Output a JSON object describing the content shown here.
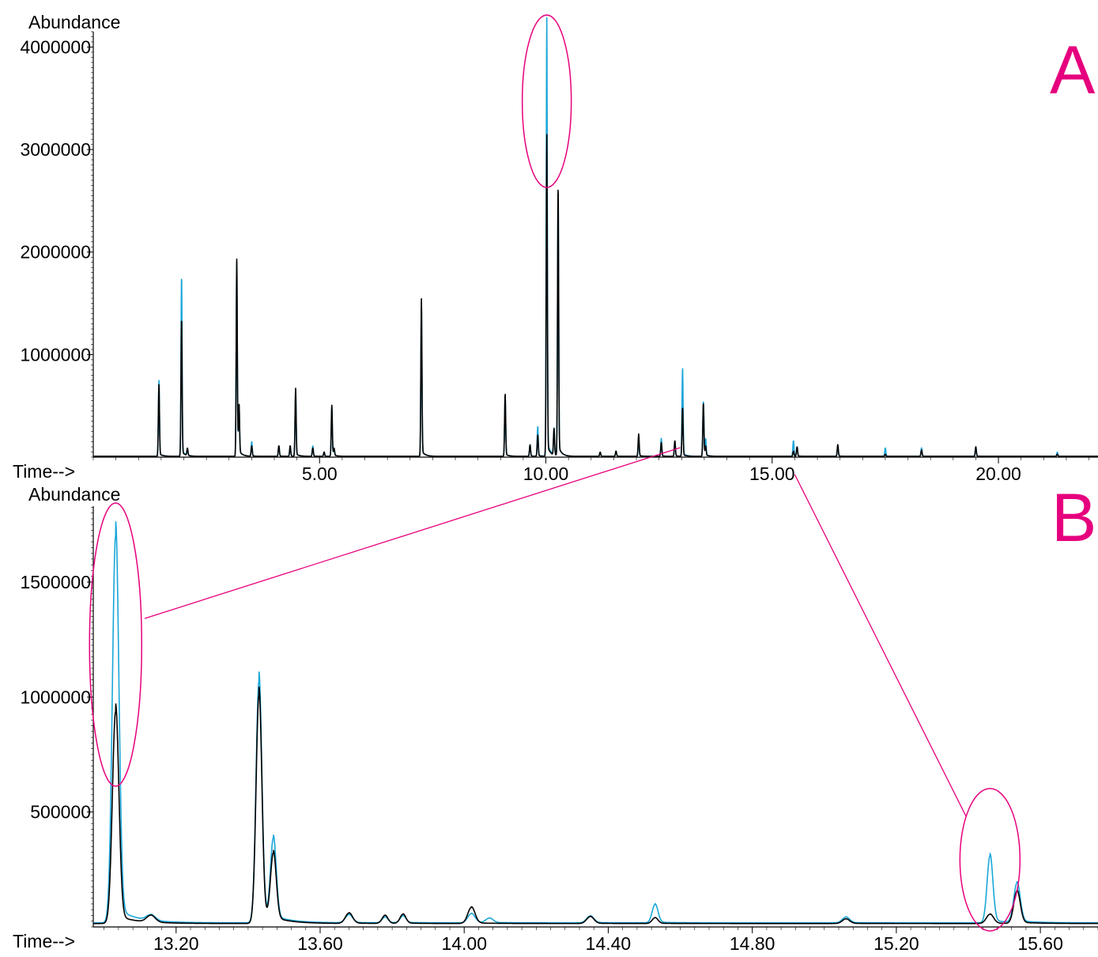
{
  "colors": {
    "series_cyan": "#1ba6d9",
    "series_black": "#000000",
    "annotation": "#e6007e",
    "axis": "#000000"
  },
  "chart_data": [
    {
      "panel": "A",
      "type": "line",
      "title": "",
      "ylabel": "Abundance",
      "xlabel": "Time-->",
      "xlim": [
        0.0,
        22.2
      ],
      "ylim": [
        0,
        4150000
      ],
      "x_ticks": [
        5.0,
        10.0,
        15.0,
        20.0
      ],
      "x_tick_labels": [
        "5.00",
        "10.00",
        "15.00",
        "20.00"
      ],
      "y_ticks": [
        1000000,
        2000000,
        3000000,
        4000000
      ],
      "y_tick_labels": [
        "1000000",
        "2000000",
        "3000000",
        "4000000"
      ],
      "grid": false,
      "series": [
        {
          "color": "cyan",
          "baseline": 8000,
          "peaks": [
            [
              1.45,
              720000
            ],
            [
              1.95,
              1730000
            ],
            [
              2.08,
              60000
            ],
            [
              3.17,
              1820000
            ],
            [
              3.22,
              460000
            ],
            [
              3.5,
              140000
            ],
            [
              4.1,
              100000
            ],
            [
              4.35,
              90000
            ],
            [
              4.47,
              620000
            ],
            [
              4.85,
              100000
            ],
            [
              5.1,
              40000
            ],
            [
              5.27,
              460000
            ],
            [
              5.32,
              60000
            ],
            [
              7.25,
              1440000
            ],
            [
              9.1,
              580000
            ],
            [
              9.65,
              110000
            ],
            [
              9.82,
              280000
            ],
            [
              10.02,
              4130000
            ],
            [
              10.18,
              250000
            ],
            [
              10.27,
              2560000
            ],
            [
              11.2,
              40000
            ],
            [
              11.55,
              50000
            ],
            [
              12.05,
              160000
            ],
            [
              12.55,
              170000
            ],
            [
              12.85,
              140000
            ],
            [
              13.02,
              840000
            ],
            [
              13.48,
              530000
            ],
            [
              13.53,
              160000
            ],
            [
              15.47,
              150000
            ],
            [
              15.55,
              90000
            ],
            [
              16.45,
              100000
            ],
            [
              17.5,
              80000
            ],
            [
              18.3,
              80000
            ],
            [
              19.5,
              80000
            ],
            [
              21.3,
              40000
            ]
          ]
        },
        {
          "color": "black",
          "baseline": 8000,
          "peaks": [
            [
              1.45,
              680000
            ],
            [
              1.95,
              1320000
            ],
            [
              2.08,
              70000
            ],
            [
              3.17,
              1850000
            ],
            [
              3.22,
              470000
            ],
            [
              3.5,
              100000
            ],
            [
              4.1,
              100000
            ],
            [
              4.35,
              100000
            ],
            [
              4.47,
              640000
            ],
            [
              4.85,
              80000
            ],
            [
              5.1,
              40000
            ],
            [
              5.27,
              480000
            ],
            [
              5.32,
              70000
            ],
            [
              7.25,
              1480000
            ],
            [
              9.1,
              590000
            ],
            [
              9.65,
              110000
            ],
            [
              9.82,
              200000
            ],
            [
              10.02,
              3030000
            ],
            [
              10.18,
              250000
            ],
            [
              10.27,
              2590000
            ],
            [
              11.2,
              40000
            ],
            [
              11.55,
              50000
            ],
            [
              12.05,
              210000
            ],
            [
              12.55,
              130000
            ],
            [
              12.85,
              150000
            ],
            [
              13.02,
              460000
            ],
            [
              13.48,
              510000
            ],
            [
              13.53,
              90000
            ],
            [
              15.47,
              50000
            ],
            [
              15.55,
              90000
            ],
            [
              16.45,
              110000
            ],
            [
              17.5,
              20000
            ],
            [
              18.3,
              60000
            ],
            [
              19.5,
              90000
            ],
            [
              21.3,
              20000
            ]
          ]
        }
      ]
    },
    {
      "panel": "B",
      "type": "line",
      "title": "",
      "ylabel": "Abundance",
      "xlabel": "Time-->",
      "xlim": [
        12.97,
        15.76
      ],
      "ylim": [
        0,
        1830000
      ],
      "x_ticks": [
        13.2,
        13.6,
        14.0,
        14.4,
        14.8,
        15.2,
        15.6
      ],
      "x_tick_labels": [
        "13.20",
        "13.60",
        "14.00",
        "14.40",
        "14.80",
        "15.20",
        "15.60"
      ],
      "y_ticks": [
        500000,
        1000000,
        1500000
      ],
      "y_tick_labels": [
        "500000",
        "1000000",
        "1500000"
      ],
      "grid": false,
      "series": [
        {
          "color": "cyan",
          "baseline": 18000,
          "peaks": [
            [
              13.032,
              1680000,
              0.009
            ],
            [
              13.13,
              25000,
              0.012
            ],
            [
              13.43,
              1050000,
              0.008
            ],
            [
              13.47,
              350000,
              0.008
            ],
            [
              13.68,
              35000,
              0.01
            ],
            [
              13.78,
              25000,
              0.008
            ],
            [
              13.83,
              30000,
              0.008
            ],
            [
              14.02,
              40000,
              0.01
            ],
            [
              14.07,
              20000,
              0.01
            ],
            [
              14.35,
              30000,
              0.01
            ],
            [
              14.53,
              80000,
              0.008
            ],
            [
              15.06,
              25000,
              0.01
            ],
            [
              15.46,
              290000,
              0.008
            ],
            [
              15.535,
              170000,
              0.009
            ]
          ]
        },
        {
          "color": "black",
          "baseline": 15000,
          "peaks": [
            [
              13.032,
              920000,
              0.009
            ],
            [
              13.13,
              30000,
              0.012
            ],
            [
              13.43,
              990000,
              0.008
            ],
            [
              13.47,
              290000,
              0.008
            ],
            [
              13.68,
              45000,
              0.01
            ],
            [
              13.78,
              35000,
              0.008
            ],
            [
              13.83,
              40000,
              0.008
            ],
            [
              14.02,
              70000,
              0.01
            ],
            [
              14.35,
              30000,
              0.01
            ],
            [
              14.53,
              25000,
              0.008
            ],
            [
              15.06,
              20000,
              0.01
            ],
            [
              15.46,
              40000,
              0.01
            ],
            [
              15.535,
              140000,
              0.009
            ]
          ]
        }
      ]
    }
  ],
  "annotations": {
    "panel_a_letter": "A",
    "panel_b_letter": "B"
  }
}
